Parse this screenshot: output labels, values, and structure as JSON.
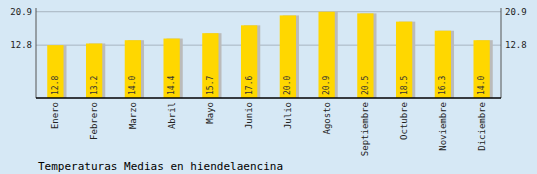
{
  "chart_data": {
    "type": "bar",
    "title": "Temperaturas Medias en hiendelaencina",
    "categories": [
      "Enero",
      "Febrero",
      "Marzo",
      "Abril",
      "Mayo",
      "Junio",
      "Julio",
      "Agosto",
      "Septiembre",
      "Octubre",
      "Noviembre",
      "Diciembre"
    ],
    "values": [
      12.8,
      13.2,
      14.0,
      14.4,
      15.7,
      17.6,
      20.0,
      20.9,
      20.5,
      18.5,
      16.3,
      14.0
    ],
    "value_labels": [
      "12.8",
      "13.2",
      "14.0",
      "14.4",
      "15.7",
      "17.6",
      "20.0",
      "20.9",
      "20.5",
      "18.5",
      "16.3",
      "14.0"
    ],
    "color": "#FFD700",
    "ylim": [
      0,
      21.8
    ],
    "yticks": [
      12.8,
      20.9
    ],
    "y2lim": [
      0,
      21.8
    ],
    "y2ticks": [
      12.8,
      20.9
    ],
    "grid": true,
    "data_labels": true
  }
}
